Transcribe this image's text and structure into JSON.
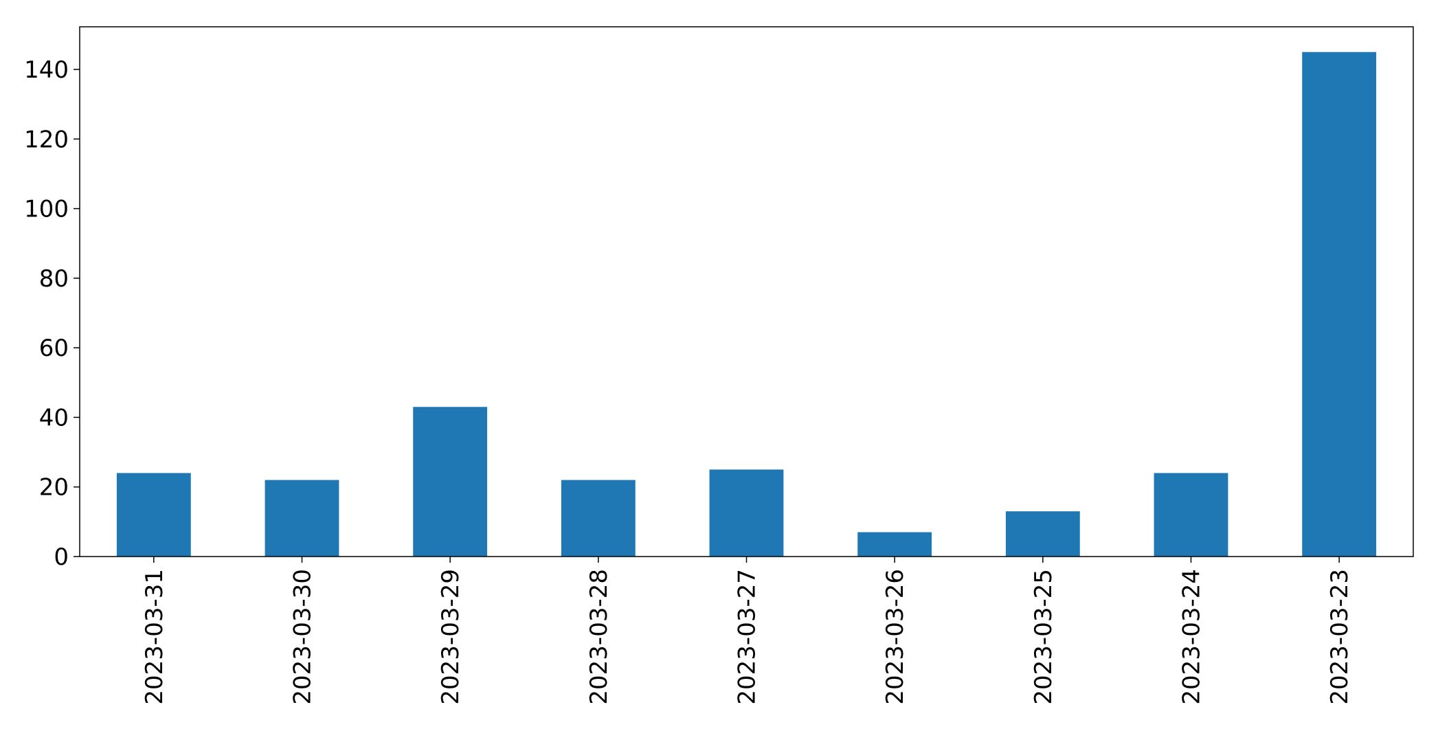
{
  "chart_data": {
    "type": "bar",
    "title": "",
    "xlabel": "",
    "ylabel": "",
    "categories": [
      "2023-03-31",
      "2023-03-30",
      "2023-03-29",
      "2023-03-28",
      "2023-03-27",
      "2023-03-26",
      "2023-03-25",
      "2023-03-24",
      "2023-03-23"
    ],
    "values": [
      24,
      22,
      43,
      22,
      25,
      7,
      13,
      24,
      145
    ],
    "ylim": [
      0,
      152.25
    ],
    "yticks": [
      0,
      20,
      40,
      60,
      80,
      100,
      120,
      140
    ],
    "grid": false,
    "legend": "none",
    "bar_color": "#1f77b4"
  }
}
